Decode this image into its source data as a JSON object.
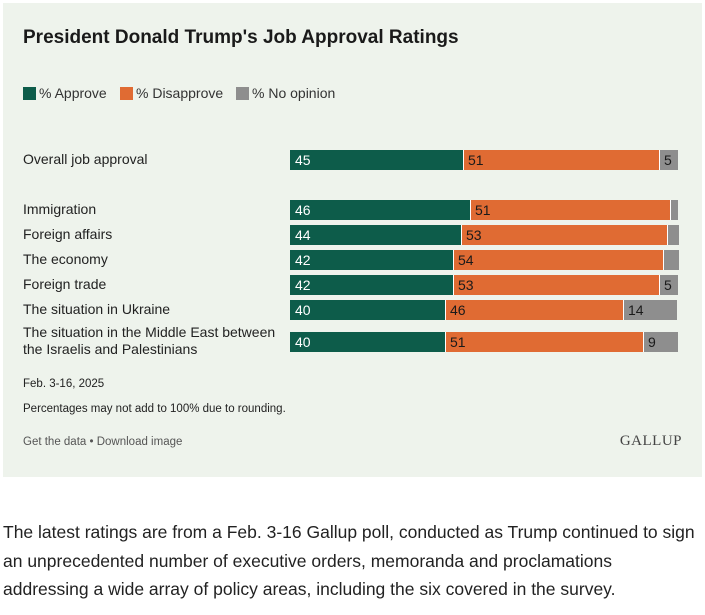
{
  "chart_data": {
    "type": "bar",
    "orientation": "horizontal",
    "stacked": true,
    "title": "President Donald Trump's Job Approval Ratings",
    "legend_position": "top-left",
    "colors": {
      "approve": "#0d5c4a",
      "disapprove": "#e06b33",
      "no_opinion": "#8e8e8e"
    },
    "series": [
      {
        "name": "% Approve",
        "key": "approve"
      },
      {
        "name": "% Disapprove",
        "key": "disapprove"
      },
      {
        "name": "% No opinion",
        "key": "no_opinion"
      }
    ],
    "categories": [
      {
        "label": "Overall job approval",
        "values": [
          45,
          51,
          5
        ],
        "value_labels": [
          "45",
          "51",
          "5"
        ]
      },
      {
        "label": "Immigration",
        "values": [
          46,
          51,
          2
        ],
        "value_labels": [
          "46",
          "51",
          ""
        ]
      },
      {
        "label": "Foreign affairs",
        "values": [
          44,
          53,
          3
        ],
        "value_labels": [
          "44",
          "53",
          ""
        ]
      },
      {
        "label": "The economy",
        "values": [
          42,
          54,
          4
        ],
        "value_labels": [
          "42",
          "54",
          ""
        ]
      },
      {
        "label": "Foreign trade",
        "values": [
          42,
          53,
          5
        ],
        "value_labels": [
          "42",
          "53",
          "5"
        ]
      },
      {
        "label": "The situation in Ukraine",
        "values": [
          40,
          46,
          14
        ],
        "value_labels": [
          "40",
          "46",
          "14"
        ]
      },
      {
        "label": "The situation in the Middle East between the Israelis and Palestinians",
        "values": [
          40,
          51,
          9
        ],
        "value_labels": [
          "40",
          "51",
          "9"
        ]
      }
    ]
  },
  "footer": {
    "date": "Feb. 3-16, 2025",
    "note": "Percentages may not add to 100% due to rounding.",
    "get_data": "Get the data",
    "separator": " • ",
    "download": "Download image",
    "logo": "GALLUP"
  },
  "article": {
    "paragraph": "The latest ratings are from a Feb. 3-16 Gallup poll, conducted as Trump continued to sign an unprecedented number of executive orders, memoranda and proclamations addressing a wide array of policy areas, including the six covered in the survey."
  }
}
